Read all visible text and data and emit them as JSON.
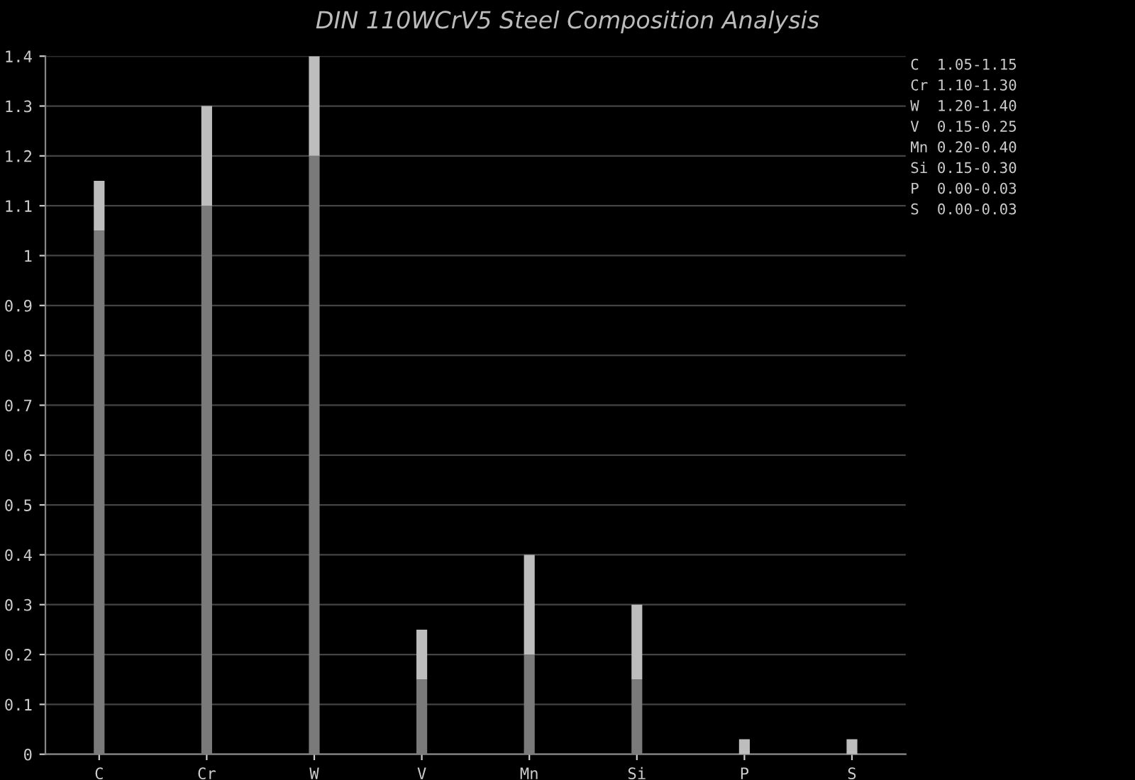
{
  "chart_data": {
    "type": "bar",
    "title": "DIN 110WCrV5 Steel Composition Analysis",
    "stacked": true,
    "categories": [
      "C",
      "Cr",
      "W",
      "V",
      "Mn",
      "Si",
      "P",
      "S"
    ],
    "series": [
      {
        "color": "#7a7a7a",
        "values": [
          1.05,
          1.1,
          1.2,
          0.15,
          0.2,
          0.15,
          0,
          0
        ]
      },
      {
        "color": "#bdbdbd",
        "values": [
          0.1,
          0.2,
          0.2,
          0.1,
          0.2,
          0.15,
          0.03,
          0.03
        ]
      }
    ],
    "ylim": [
      0,
      1.4
    ],
    "yticks": [
      0,
      0.1,
      0.2,
      0.3,
      0.4,
      0.5,
      0.6,
      0.7,
      0.8,
      0.9,
      1,
      1.1,
      1.2,
      1.3,
      1.4
    ],
    "grid": "y",
    "legend": false,
    "annotations": [
      "C  1.05-1.15",
      "Cr 1.10-1.30",
      "W  1.20-1.40",
      "V  0.15-0.25",
      "Mn 0.20-0.40",
      "Si 0.15-0.30",
      "P  0.00-0.03",
      "S  0.00-0.03"
    ]
  }
}
